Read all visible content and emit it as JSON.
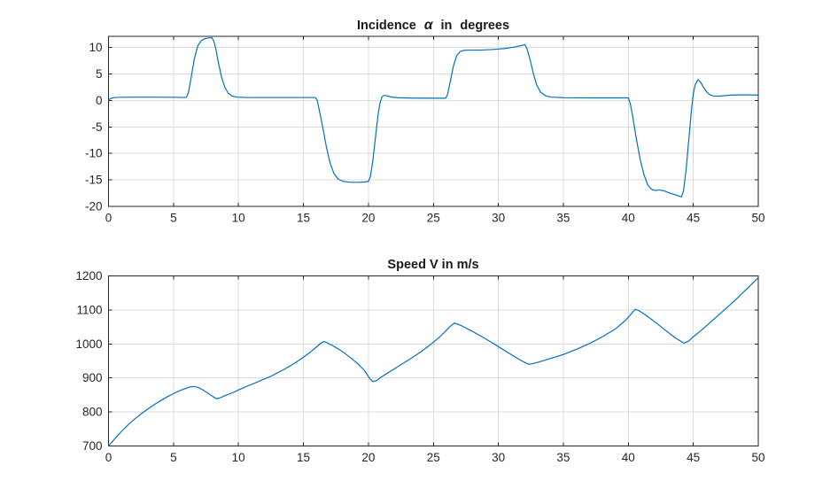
{
  "figure": {
    "background": "#FFFFFF",
    "axis_color": "#262626",
    "grid_color": "#DBDBDB",
    "tick_label_color": "#262626"
  },
  "chart_data": [
    {
      "type": "line",
      "title": "Incidence α in degrees",
      "title_prefix": "Incidence",
      "title_symbol": "α",
      "title_suffix": "in degrees",
      "xlabel": "",
      "ylabel": "",
      "xlim": [
        0,
        50
      ],
      "ylim": [
        -20,
        12.1
      ],
      "xticks": [
        0,
        5,
        10,
        15,
        20,
        25,
        30,
        35,
        40,
        45,
        50
      ],
      "yticks": [
        -20,
        -15,
        -10,
        -5,
        0,
        5,
        10
      ],
      "grid": true,
      "legend": null,
      "line_color": "#0072BD",
      "points": [
        [
          0,
          0.1
        ],
        [
          0.2,
          0.4
        ],
        [
          0.5,
          0.55
        ],
        [
          1,
          0.6
        ],
        [
          2,
          0.62
        ],
        [
          3.5,
          0.62
        ],
        [
          5,
          0.6
        ],
        [
          5.8,
          0.55
        ],
        [
          6.0,
          0.6
        ],
        [
          6.15,
          1.5
        ],
        [
          6.35,
          4.2
        ],
        [
          6.6,
          7.8
        ],
        [
          6.85,
          10.2
        ],
        [
          7.1,
          11.2
        ],
        [
          7.4,
          11.65
        ],
        [
          7.7,
          11.8
        ],
        [
          7.95,
          11.85
        ],
        [
          8.1,
          11.2
        ],
        [
          8.25,
          9.8
        ],
        [
          8.45,
          7.2
        ],
        [
          8.7,
          4.4
        ],
        [
          8.95,
          2.5
        ],
        [
          9.2,
          1.4
        ],
        [
          9.5,
          0.85
        ],
        [
          9.9,
          0.62
        ],
        [
          10.5,
          0.56
        ],
        [
          12,
          0.55
        ],
        [
          14,
          0.55
        ],
        [
          15.9,
          0.55
        ],
        [
          16.05,
          0.1
        ],
        [
          16.2,
          -1.6
        ],
        [
          16.45,
          -4.6
        ],
        [
          16.75,
          -8.6
        ],
        [
          17.05,
          -11.8
        ],
        [
          17.35,
          -13.8
        ],
        [
          17.7,
          -14.9
        ],
        [
          18.1,
          -15.3
        ],
        [
          18.6,
          -15.45
        ],
        [
          19.2,
          -15.45
        ],
        [
          19.7,
          -15.4
        ],
        [
          20.0,
          -15.3
        ],
        [
          20.15,
          -14.4
        ],
        [
          20.35,
          -11.2
        ],
        [
          20.55,
          -6.8
        ],
        [
          20.75,
          -2.6
        ],
        [
          20.9,
          -0.4
        ],
        [
          21.05,
          0.7
        ],
        [
          21.2,
          0.95
        ],
        [
          21.45,
          0.85
        ],
        [
          21.75,
          0.65
        ],
        [
          22.3,
          0.5
        ],
        [
          23.5,
          0.44
        ],
        [
          25,
          0.42
        ],
        [
          25.95,
          0.42
        ],
        [
          26.1,
          1.2
        ],
        [
          26.3,
          3.6
        ],
        [
          26.55,
          6.6
        ],
        [
          26.8,
          8.5
        ],
        [
          27.05,
          9.2
        ],
        [
          27.35,
          9.45
        ],
        [
          27.8,
          9.5
        ],
        [
          28.6,
          9.5
        ],
        [
          29.5,
          9.6
        ],
        [
          30.5,
          9.8
        ],
        [
          31.3,
          10.1
        ],
        [
          31.9,
          10.45
        ],
        [
          32.05,
          10.5
        ],
        [
          32.2,
          9.8
        ],
        [
          32.45,
          7.6
        ],
        [
          32.7,
          5.0
        ],
        [
          32.95,
          2.9
        ],
        [
          33.25,
          1.55
        ],
        [
          33.65,
          0.85
        ],
        [
          34.1,
          0.62
        ],
        [
          35,
          0.52
        ],
        [
          37,
          0.48
        ],
        [
          39,
          0.48
        ],
        [
          40.0,
          0.48
        ],
        [
          40.15,
          -0.6
        ],
        [
          40.35,
          -3.2
        ],
        [
          40.6,
          -7.0
        ],
        [
          40.9,
          -11.0
        ],
        [
          41.2,
          -14.0
        ],
        [
          41.5,
          -16.0
        ],
        [
          41.8,
          -16.8
        ],
        [
          42.1,
          -17.0
        ],
        [
          42.4,
          -16.9
        ],
        [
          42.8,
          -17.1
        ],
        [
          43.2,
          -17.5
        ],
        [
          43.6,
          -17.8
        ],
        [
          43.95,
          -18.1
        ],
        [
          44.1,
          -18.2
        ],
        [
          44.25,
          -17.0
        ],
        [
          44.45,
          -13.0
        ],
        [
          44.65,
          -7.5
        ],
        [
          44.85,
          -2.0
        ],
        [
          45.0,
          1.2
        ],
        [
          45.15,
          3.0
        ],
        [
          45.35,
          3.9
        ],
        [
          45.55,
          3.5
        ],
        [
          45.75,
          2.6
        ],
        [
          46.0,
          1.7
        ],
        [
          46.25,
          1.1
        ],
        [
          46.55,
          0.85
        ],
        [
          46.95,
          0.8
        ],
        [
          47.4,
          0.9
        ],
        [
          47.9,
          1.0
        ],
        [
          48.6,
          1.05
        ],
        [
          49.3,
          1.05
        ],
        [
          50,
          1.0
        ]
      ]
    },
    {
      "type": "line",
      "title": "Speed V in m/s",
      "xlabel": "",
      "ylabel": "",
      "xlim": [
        0,
        50
      ],
      "ylim": [
        700,
        1200
      ],
      "xticks": [
        0,
        5,
        10,
        15,
        20,
        25,
        30,
        35,
        40,
        45,
        50
      ],
      "yticks": [
        700,
        800,
        900,
        1000,
        1100,
        1200
      ],
      "grid": true,
      "legend": null,
      "line_color": "#0072BD",
      "points": [
        [
          0,
          700
        ],
        [
          0.5,
          722
        ],
        [
          1,
          743
        ],
        [
          1.5,
          762
        ],
        [
          2,
          779
        ],
        [
          2.5,
          794
        ],
        [
          3,
          808
        ],
        [
          3.5,
          821
        ],
        [
          4,
          833
        ],
        [
          4.5,
          844
        ],
        [
          5,
          854
        ],
        [
          5.5,
          863
        ],
        [
          6,
          870
        ],
        [
          6.3,
          874
        ],
        [
          6.6,
          875
        ],
        [
          6.9,
          872
        ],
        [
          7.3,
          864
        ],
        [
          7.7,
          854
        ],
        [
          8,
          846
        ],
        [
          8.3,
          839
        ],
        [
          8.55,
          841
        ],
        [
          8.9,
          847
        ],
        [
          9.3,
          853
        ],
        [
          9.7,
          859
        ],
        [
          10,
          865
        ],
        [
          10.5,
          873
        ],
        [
          11,
          881
        ],
        [
          11.5,
          889
        ],
        [
          12,
          897
        ],
        [
          12.5,
          905
        ],
        [
          13,
          915
        ],
        [
          13.5,
          925
        ],
        [
          14,
          936
        ],
        [
          14.5,
          948
        ],
        [
          15,
          961
        ],
        [
          15.5,
          975
        ],
        [
          16,
          991
        ],
        [
          16.3,
          1001
        ],
        [
          16.55,
          1007
        ],
        [
          16.8,
          1004
        ],
        [
          17.2,
          996
        ],
        [
          17.7,
          985
        ],
        [
          18.2,
          972
        ],
        [
          18.7,
          957
        ],
        [
          19.2,
          941
        ],
        [
          19.7,
          922
        ],
        [
          20.1,
          898
        ],
        [
          20.35,
          889
        ],
        [
          20.65,
          893
        ],
        [
          21,
          903
        ],
        [
          21.5,
          915
        ],
        [
          22,
          927
        ],
        [
          22.5,
          939
        ],
        [
          23,
          951
        ],
        [
          23.5,
          963
        ],
        [
          24,
          976
        ],
        [
          24.5,
          990
        ],
        [
          25,
          1005
        ],
        [
          25.5,
          1021
        ],
        [
          26,
          1040
        ],
        [
          26.3,
          1052
        ],
        [
          26.6,
          1061
        ],
        [
          26.9,
          1058
        ],
        [
          27.3,
          1051
        ],
        [
          28,
          1037
        ],
        [
          28.7,
          1022
        ],
        [
          29.5,
          1004
        ],
        [
          30.3,
          985
        ],
        [
          31.1,
          966
        ],
        [
          31.8,
          950
        ],
        [
          32.35,
          940
        ],
        [
          32.75,
          943
        ],
        [
          33.2,
          948
        ],
        [
          34,
          957
        ],
        [
          35,
          969
        ],
        [
          36,
          984
        ],
        [
          37,
          1001
        ],
        [
          38,
          1021
        ],
        [
          39,
          1044
        ],
        [
          39.8,
          1070
        ],
        [
          40.3,
          1092
        ],
        [
          40.55,
          1102
        ],
        [
          40.8,
          1098
        ],
        [
          41.3,
          1086
        ],
        [
          42,
          1066
        ],
        [
          42.8,
          1042
        ],
        [
          43.6,
          1018
        ],
        [
          44.3,
          1002
        ],
        [
          44.65,
          1009
        ],
        [
          45,
          1021
        ],
        [
          45.7,
          1043
        ],
        [
          46.5,
          1070
        ],
        [
          47.3,
          1097
        ],
        [
          48.2,
          1128
        ],
        [
          49.1,
          1161
        ],
        [
          50,
          1195
        ]
      ]
    }
  ]
}
